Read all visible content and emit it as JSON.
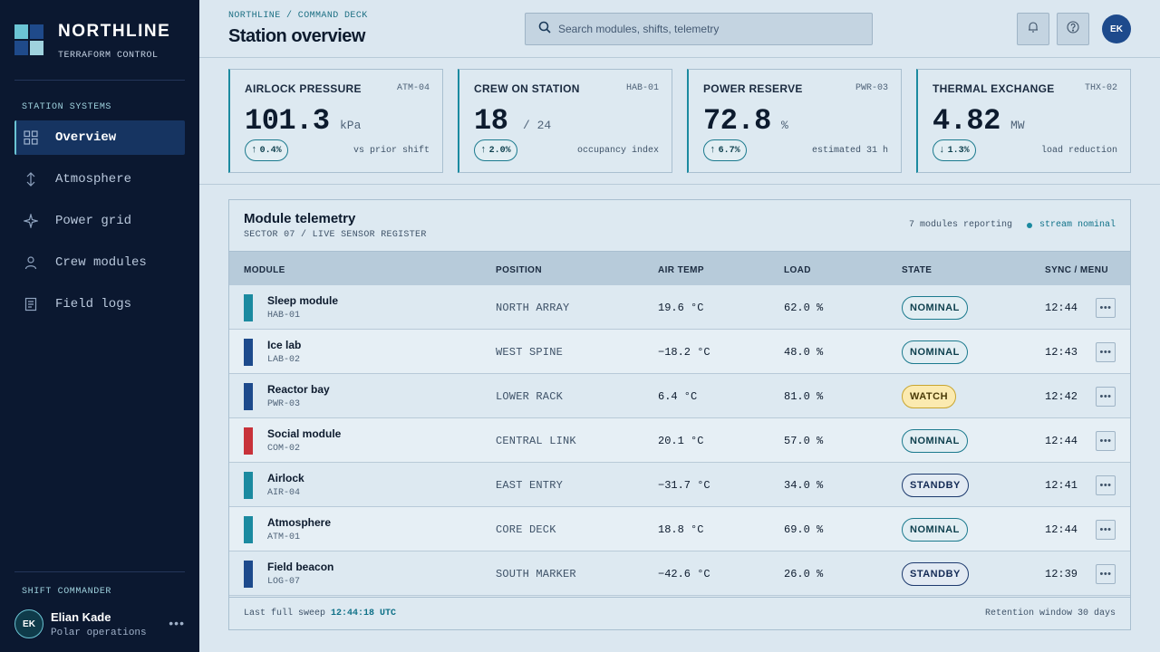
{
  "brand": {
    "name": "NORTHLINE",
    "subtitle": "TERRAFORM CONTROL"
  },
  "sidebar": {
    "section_label": "STATION SYSTEMS",
    "items": [
      {
        "label": "Overview",
        "icon": "grid-icon",
        "active": true
      },
      {
        "label": "Atmosphere",
        "icon": "atmosphere-icon",
        "active": false
      },
      {
        "label": "Power grid",
        "icon": "sparkle-icon",
        "active": false
      },
      {
        "label": "Crew modules",
        "icon": "person-icon",
        "active": false
      },
      {
        "label": "Field logs",
        "icon": "document-icon",
        "active": false
      }
    ],
    "commander_label": "SHIFT COMMANDER",
    "commander": {
      "initials": "EK",
      "name": "Elian Kade",
      "role": "Polar operations"
    }
  },
  "header": {
    "breadcrumb": "NORTHLINE / COMMAND DECK",
    "title": "Station overview",
    "search_placeholder": "Search modules, shifts, telemetry",
    "user_initials": "EK"
  },
  "metrics": [
    {
      "title": "AIRLOCK PRESSURE",
      "code": "ATM-04",
      "value": "101.3",
      "unit": "kPa",
      "delta": "0.4%",
      "direction": "up",
      "note": "vs prior shift"
    },
    {
      "title": "CREW ON STATION",
      "code": "HAB-01",
      "value": "18",
      "unit": "/ 24",
      "delta": "2.0%",
      "direction": "up",
      "note": "occupancy index"
    },
    {
      "title": "POWER RESERVE",
      "code": "PWR-03",
      "value": "72.8",
      "unit": "%",
      "delta": "6.7%",
      "direction": "up",
      "note": "estimated 31 h"
    },
    {
      "title": "THERMAL EXCHANGE",
      "code": "THX-02",
      "value": "4.82",
      "unit": "MW",
      "delta": "1.3%",
      "direction": "down",
      "note": "load reduction"
    }
  ],
  "telemetry": {
    "title": "Module telemetry",
    "subtitle": "SECTOR 07 / LIVE SENSOR REGISTER",
    "count_text": "7 modules reporting",
    "stream_text": "stream nominal",
    "columns": [
      "MODULE",
      "POSITION",
      "AIR TEMP",
      "LOAD",
      "STATE",
      "SYNC / MENU"
    ],
    "rows": [
      {
        "name": "Sleep module",
        "code": "HAB-01",
        "color": "#1b8aa0",
        "position": "NORTH ARRAY",
        "temp": "19.6 °C",
        "load": "62.0 %",
        "state": "NOMINAL",
        "sync": "12:44"
      },
      {
        "name": "Ice lab",
        "code": "LAB-02",
        "color": "#1d4a8c",
        "position": "WEST SPINE",
        "temp": "−18.2 °C",
        "load": "48.0 %",
        "state": "NOMINAL",
        "sync": "12:43"
      },
      {
        "name": "Reactor bay",
        "code": "PWR-03",
        "color": "#1d4a8c",
        "position": "LOWER RACK",
        "temp": "6.4 °C",
        "load": "81.0 %",
        "state": "WATCH",
        "sync": "12:42"
      },
      {
        "name": "Social module",
        "code": "COM-02",
        "color": "#c8323a",
        "position": "CENTRAL LINK",
        "temp": "20.1 °C",
        "load": "57.0 %",
        "state": "NOMINAL",
        "sync": "12:44"
      },
      {
        "name": "Airlock",
        "code": "AIR-04",
        "color": "#1b8aa0",
        "position": "EAST ENTRY",
        "temp": "−31.7 °C",
        "load": "34.0 %",
        "state": "STANDBY",
        "sync": "12:41"
      },
      {
        "name": "Atmosphere",
        "code": "ATM-01",
        "color": "#1b8aa0",
        "position": "CORE DECK",
        "temp": "18.8 °C",
        "load": "69.0 %",
        "state": "NOMINAL",
        "sync": "12:44"
      },
      {
        "name": "Field beacon",
        "code": "LOG-07",
        "color": "#1d4a8c",
        "position": "SOUTH MARKER",
        "temp": "−42.6 °C",
        "load": "26.0 %",
        "state": "STANDBY",
        "sync": "12:39"
      }
    ],
    "footer_left_label": "Last full sweep",
    "footer_left_time": "12:44:18 UTC",
    "footer_right": "Retention window 30 days"
  }
}
